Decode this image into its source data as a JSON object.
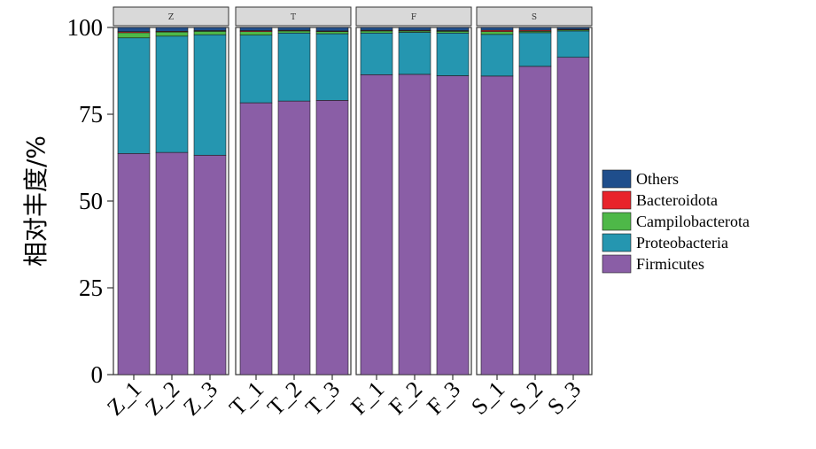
{
  "chart_data": {
    "type": "bar",
    "stacked": true,
    "ylabel": "相对丰度/%",
    "ylim": [
      0,
      100
    ],
    "yticks": [
      "0",
      "25",
      "50",
      "75",
      "100"
    ],
    "panels": [
      {
        "label": "Z",
        "categories": [
          "Z_1",
          "Z_2",
          "Z_3"
        ]
      },
      {
        "label": "T",
        "categories": [
          "T_1",
          "T_2",
          "T_3"
        ]
      },
      {
        "label": "F",
        "categories": [
          "F_1",
          "F_2",
          "F_3"
        ]
      },
      {
        "label": "S",
        "categories": [
          "S_1",
          "S_2",
          "S_3"
        ]
      }
    ],
    "categories": [
      "Z_1",
      "Z_2",
      "Z_3",
      "T_1",
      "T_2",
      "T_3",
      "F_1",
      "F_2",
      "F_3",
      "S_1",
      "S_2",
      "S_3"
    ],
    "series": [
      {
        "name": "Firmicutes",
        "color": "#8a5ea6",
        "values": [
          63.7,
          64.0,
          63.2,
          78.3,
          78.8,
          79.0,
          86.4,
          86.5,
          86.1,
          86.0,
          88.8,
          91.4
        ]
      },
      {
        "name": "Proteobacteria",
        "color": "#2596b0",
        "values": [
          33.3,
          33.5,
          34.7,
          19.5,
          19.6,
          19.2,
          12.0,
          12.1,
          12.3,
          12.0,
          9.7,
          7.6
        ]
      },
      {
        "name": "Campilobacterota",
        "color": "#4eb848",
        "values": [
          1.5,
          1.2,
          1.0,
          1.0,
          0.6,
          0.6,
          0.6,
          0.4,
          0.5,
          0.8,
          0.4,
          0.3
        ]
      },
      {
        "name": "Bacteroidota",
        "color": "#e8242b",
        "values": [
          0.3,
          0.2,
          0.2,
          0.3,
          0.2,
          0.2,
          0.2,
          0.2,
          0.2,
          0.4,
          0.3,
          0.2
        ]
      },
      {
        "name": "Others",
        "color": "#1f4e8c",
        "values": [
          1.2,
          1.1,
          0.9,
          0.9,
          0.8,
          1.0,
          0.8,
          0.8,
          0.9,
          0.8,
          0.8,
          0.5
        ]
      }
    ],
    "legend_order": [
      "Others",
      "Bacteroidota",
      "Campilobacterota",
      "Proteobacteria",
      "Firmicutes"
    ],
    "legend_position": "right",
    "grid": false,
    "strip_color": "#d9d9d9"
  }
}
